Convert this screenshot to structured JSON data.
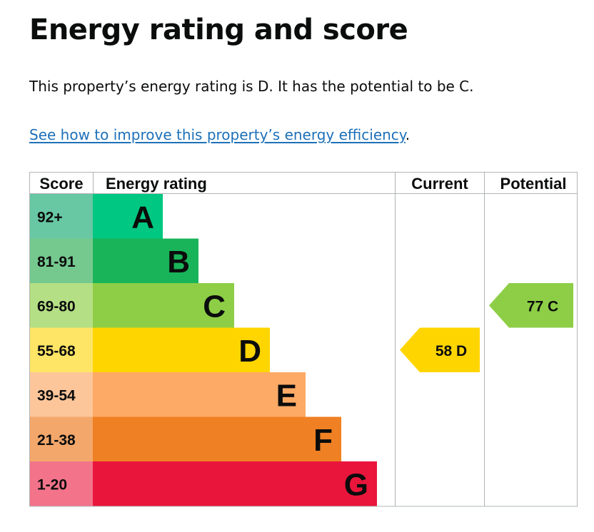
{
  "page": {
    "title": "Energy rating and score",
    "intro": "This property’s energy rating is D. It has the potential to be C.",
    "improve_link": "See how to improve this property’s energy efficiency",
    "improve_link_suffix": "."
  },
  "chart_data": {
    "type": "table",
    "columns": [
      "Score",
      "Energy rating",
      "Current",
      "Potential"
    ],
    "bands": [
      {
        "range": "92+",
        "letter": "A",
        "color": "#00c781",
        "score_color": "#67c8a3"
      },
      {
        "range": "81-91",
        "letter": "B",
        "color": "#19b459",
        "score_color": "#75c98f"
      },
      {
        "range": "69-80",
        "letter": "C",
        "color": "#8dce46",
        "score_color": "#b4df84"
      },
      {
        "range": "55-68",
        "letter": "D",
        "color": "#ffd500",
        "score_color": "#ffe566"
      },
      {
        "range": "39-54",
        "letter": "E",
        "color": "#fcaa65",
        "score_color": "#fdc69a"
      },
      {
        "range": "21-38",
        "letter": "F",
        "color": "#ef8023",
        "score_color": "#f4a76a"
      },
      {
        "range": "1-20",
        "letter": "G",
        "color": "#e9153b",
        "score_color": "#f2738a"
      }
    ],
    "current": {
      "score": 58,
      "letter": "D",
      "color": "#ffd500"
    },
    "potential": {
      "score": 77,
      "letter": "C",
      "color": "#8dce46"
    }
  }
}
